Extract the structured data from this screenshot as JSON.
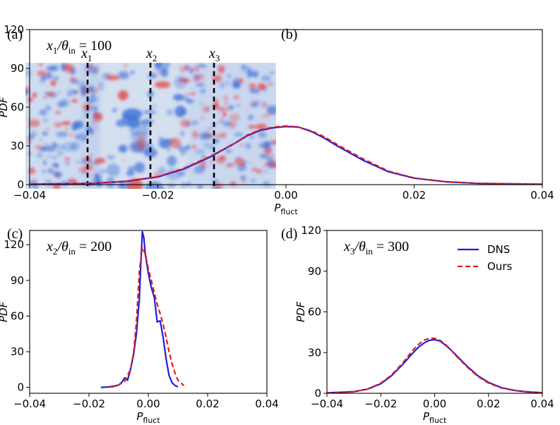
{
  "figure": {
    "field_panel": {
      "label": "(a)",
      "probe_lines": [
        "x1",
        "x2",
        "x3"
      ],
      "probe_labels": [
        {
          "var": "x",
          "sub": "1"
        },
        {
          "var": "x",
          "sub": "2"
        },
        {
          "var": "x",
          "sub": "3"
        }
      ],
      "colormap": {
        "negative": "#3b6fd6",
        "neutral": "#dde6f2",
        "positive": "#e2473a"
      }
    }
  },
  "chart_data": [
    {
      "id": "b",
      "type": "line",
      "label": "(b)",
      "annotation": {
        "var": "x",
        "sub": "1",
        "over": "/θ",
        "oversub": "in",
        "value": " = 100"
      },
      "xlabel": "P",
      "xlabel_sub": "fluct",
      "ylabel": "PDF",
      "xlim": [
        -0.04,
        0.04
      ],
      "ylim": [
        0,
        120
      ],
      "xticks": [
        -0.04,
        -0.02,
        0.0,
        0.02,
        0.04
      ],
      "xtick_labels": [
        "−0.04",
        "−0.02",
        "0.00",
        "0.02",
        "0.04"
      ],
      "yticks": [
        0,
        30,
        60,
        90,
        120
      ],
      "ytick_labels": [
        "0",
        "30",
        "60",
        "90",
        "120"
      ],
      "series": [
        {
          "name": "DNS",
          "color": "#1f1fdc",
          "style": "solid",
          "x": [
            -0.04,
            -0.03,
            -0.025,
            -0.02,
            -0.016,
            -0.012,
            -0.008,
            -0.006,
            -0.004,
            -0.002,
            0.0,
            0.002,
            0.004,
            0.006,
            0.008,
            0.012,
            0.016,
            0.02,
            0.025,
            0.03,
            0.04
          ],
          "y": [
            0.3,
            1,
            2.5,
            6,
            12,
            21,
            32,
            38,
            42,
            44,
            45,
            44.5,
            41,
            36,
            30,
            19,
            10,
            5,
            2.2,
            1,
            0.3
          ]
        },
        {
          "name": "Ours",
          "color": "#e41a1c",
          "style": "dashed",
          "x": [
            -0.04,
            -0.03,
            -0.025,
            -0.02,
            -0.016,
            -0.012,
            -0.008,
            -0.006,
            -0.004,
            -0.002,
            0.0,
            0.002,
            0.004,
            0.006,
            0.008,
            0.012,
            0.016,
            0.02,
            0.025,
            0.03,
            0.04
          ],
          "y": [
            0.3,
            1,
            2.6,
            6.2,
            12.5,
            21.5,
            32,
            38.5,
            42.5,
            44.5,
            45.5,
            44.5,
            41.5,
            37,
            31,
            20,
            10.5,
            5.2,
            2.2,
            1,
            0.3
          ]
        }
      ]
    },
    {
      "id": "c",
      "type": "line",
      "label": "(c)",
      "annotation": {
        "var": "x",
        "sub": "2",
        "over": "/θ",
        "oversub": "in",
        "value": " = 200"
      },
      "xlabel": "P",
      "xlabel_sub": "fluct",
      "ylabel": "PDF",
      "xlim": [
        -0.04,
        0.04
      ],
      "ylim": [
        -5,
        132
      ],
      "xticks": [
        -0.04,
        -0.02,
        0.0,
        0.02,
        0.04
      ],
      "xtick_labels": [
        "−0.04",
        "−0.02",
        "0.00",
        "0.02",
        "0.04"
      ],
      "yticks": [
        0,
        30,
        60,
        90,
        120
      ],
      "ytick_labels": [
        "0",
        "30",
        "60",
        "90",
        "120"
      ],
      "series": [
        {
          "name": "DNS",
          "color": "#1f1fdc",
          "style": "solid",
          "x": [
            -0.016,
            -0.012,
            -0.01,
            -0.009,
            -0.008,
            -0.007,
            -0.006,
            -0.005,
            -0.004,
            -0.003,
            -0.0025,
            -0.002,
            -0.0015,
            -0.001,
            0.0,
            0.001,
            0.002,
            0.003,
            0.004,
            0.005,
            0.006,
            0.007,
            0.008,
            0.009,
            0.01
          ],
          "y": [
            0,
            0.5,
            2,
            4,
            8,
            6,
            15,
            27,
            45,
            75,
            105,
            131,
            126,
            112,
            96,
            84,
            76,
            55,
            56,
            42,
            24,
            10,
            4,
            1.5,
            0.5
          ]
        },
        {
          "name": "Ours",
          "color": "#e41a1c",
          "style": "dashed",
          "x": [
            -0.013,
            -0.01,
            -0.008,
            -0.006,
            -0.005,
            -0.004,
            -0.003,
            -0.002,
            -0.001,
            0.0,
            0.001,
            0.002,
            0.003,
            0.004,
            0.005,
            0.006,
            0.007,
            0.008,
            0.009,
            0.01,
            0.012
          ],
          "y": [
            0.5,
            2,
            5,
            15,
            28,
            55,
            98,
            118,
            112,
            100,
            90,
            80,
            70,
            62,
            53,
            42,
            30,
            20,
            12,
            6,
            1.5
          ]
        }
      ]
    },
    {
      "id": "d",
      "type": "line",
      "label": "(d)",
      "annotation": {
        "var": "x",
        "sub": "3",
        "over": "/θ",
        "oversub": "in",
        "value": " = 300"
      },
      "xlabel": "P",
      "xlabel_sub": "fluct",
      "ylabel": "PDF",
      "xlim": [
        -0.04,
        0.04
      ],
      "ylim": [
        0,
        120
      ],
      "xticks": [
        -0.04,
        -0.02,
        0.0,
        0.02,
        0.04
      ],
      "xtick_labels": [
        "−0.04",
        "−0.02",
        "0.00",
        "0.02",
        "0.04"
      ],
      "yticks": [
        0,
        30,
        60,
        90,
        120
      ],
      "ytick_labels": [
        "0",
        "30",
        "60",
        "90",
        "120"
      ],
      "legend": {
        "position": "top-right",
        "entries": [
          "DNS",
          "Ours"
        ]
      },
      "series": [
        {
          "name": "DNS",
          "color": "#1f1fdc",
          "style": "solid",
          "x": [
            -0.04,
            -0.03,
            -0.025,
            -0.02,
            -0.016,
            -0.012,
            -0.008,
            -0.006,
            -0.004,
            -0.002,
            0.0,
            0.002,
            0.004,
            0.006,
            0.008,
            0.012,
            0.016,
            0.02,
            0.025,
            0.03,
            0.035,
            0.04
          ],
          "y": [
            0.3,
            1.2,
            3,
            7,
            13,
            21,
            30,
            34,
            37,
            39,
            39.5,
            38.5,
            35.5,
            32,
            28,
            20,
            13,
            8,
            4,
            2,
            1,
            0.4
          ]
        },
        {
          "name": "Ours",
          "color": "#e41a1c",
          "style": "dashed",
          "x": [
            -0.04,
            -0.03,
            -0.025,
            -0.02,
            -0.016,
            -0.012,
            -0.008,
            -0.006,
            -0.004,
            -0.002,
            0.0,
            0.002,
            0.004,
            0.006,
            0.008,
            0.012,
            0.016,
            0.02,
            0.025,
            0.03,
            0.035,
            0.04
          ],
          "y": [
            0.3,
            1.2,
            3,
            7.5,
            13.5,
            22,
            32,
            36,
            39,
            40.5,
            40.5,
            39,
            36,
            32,
            27.5,
            19.5,
            12.5,
            7.5,
            3.8,
            1.9,
            0.9,
            0.4
          ]
        }
      ]
    }
  ]
}
